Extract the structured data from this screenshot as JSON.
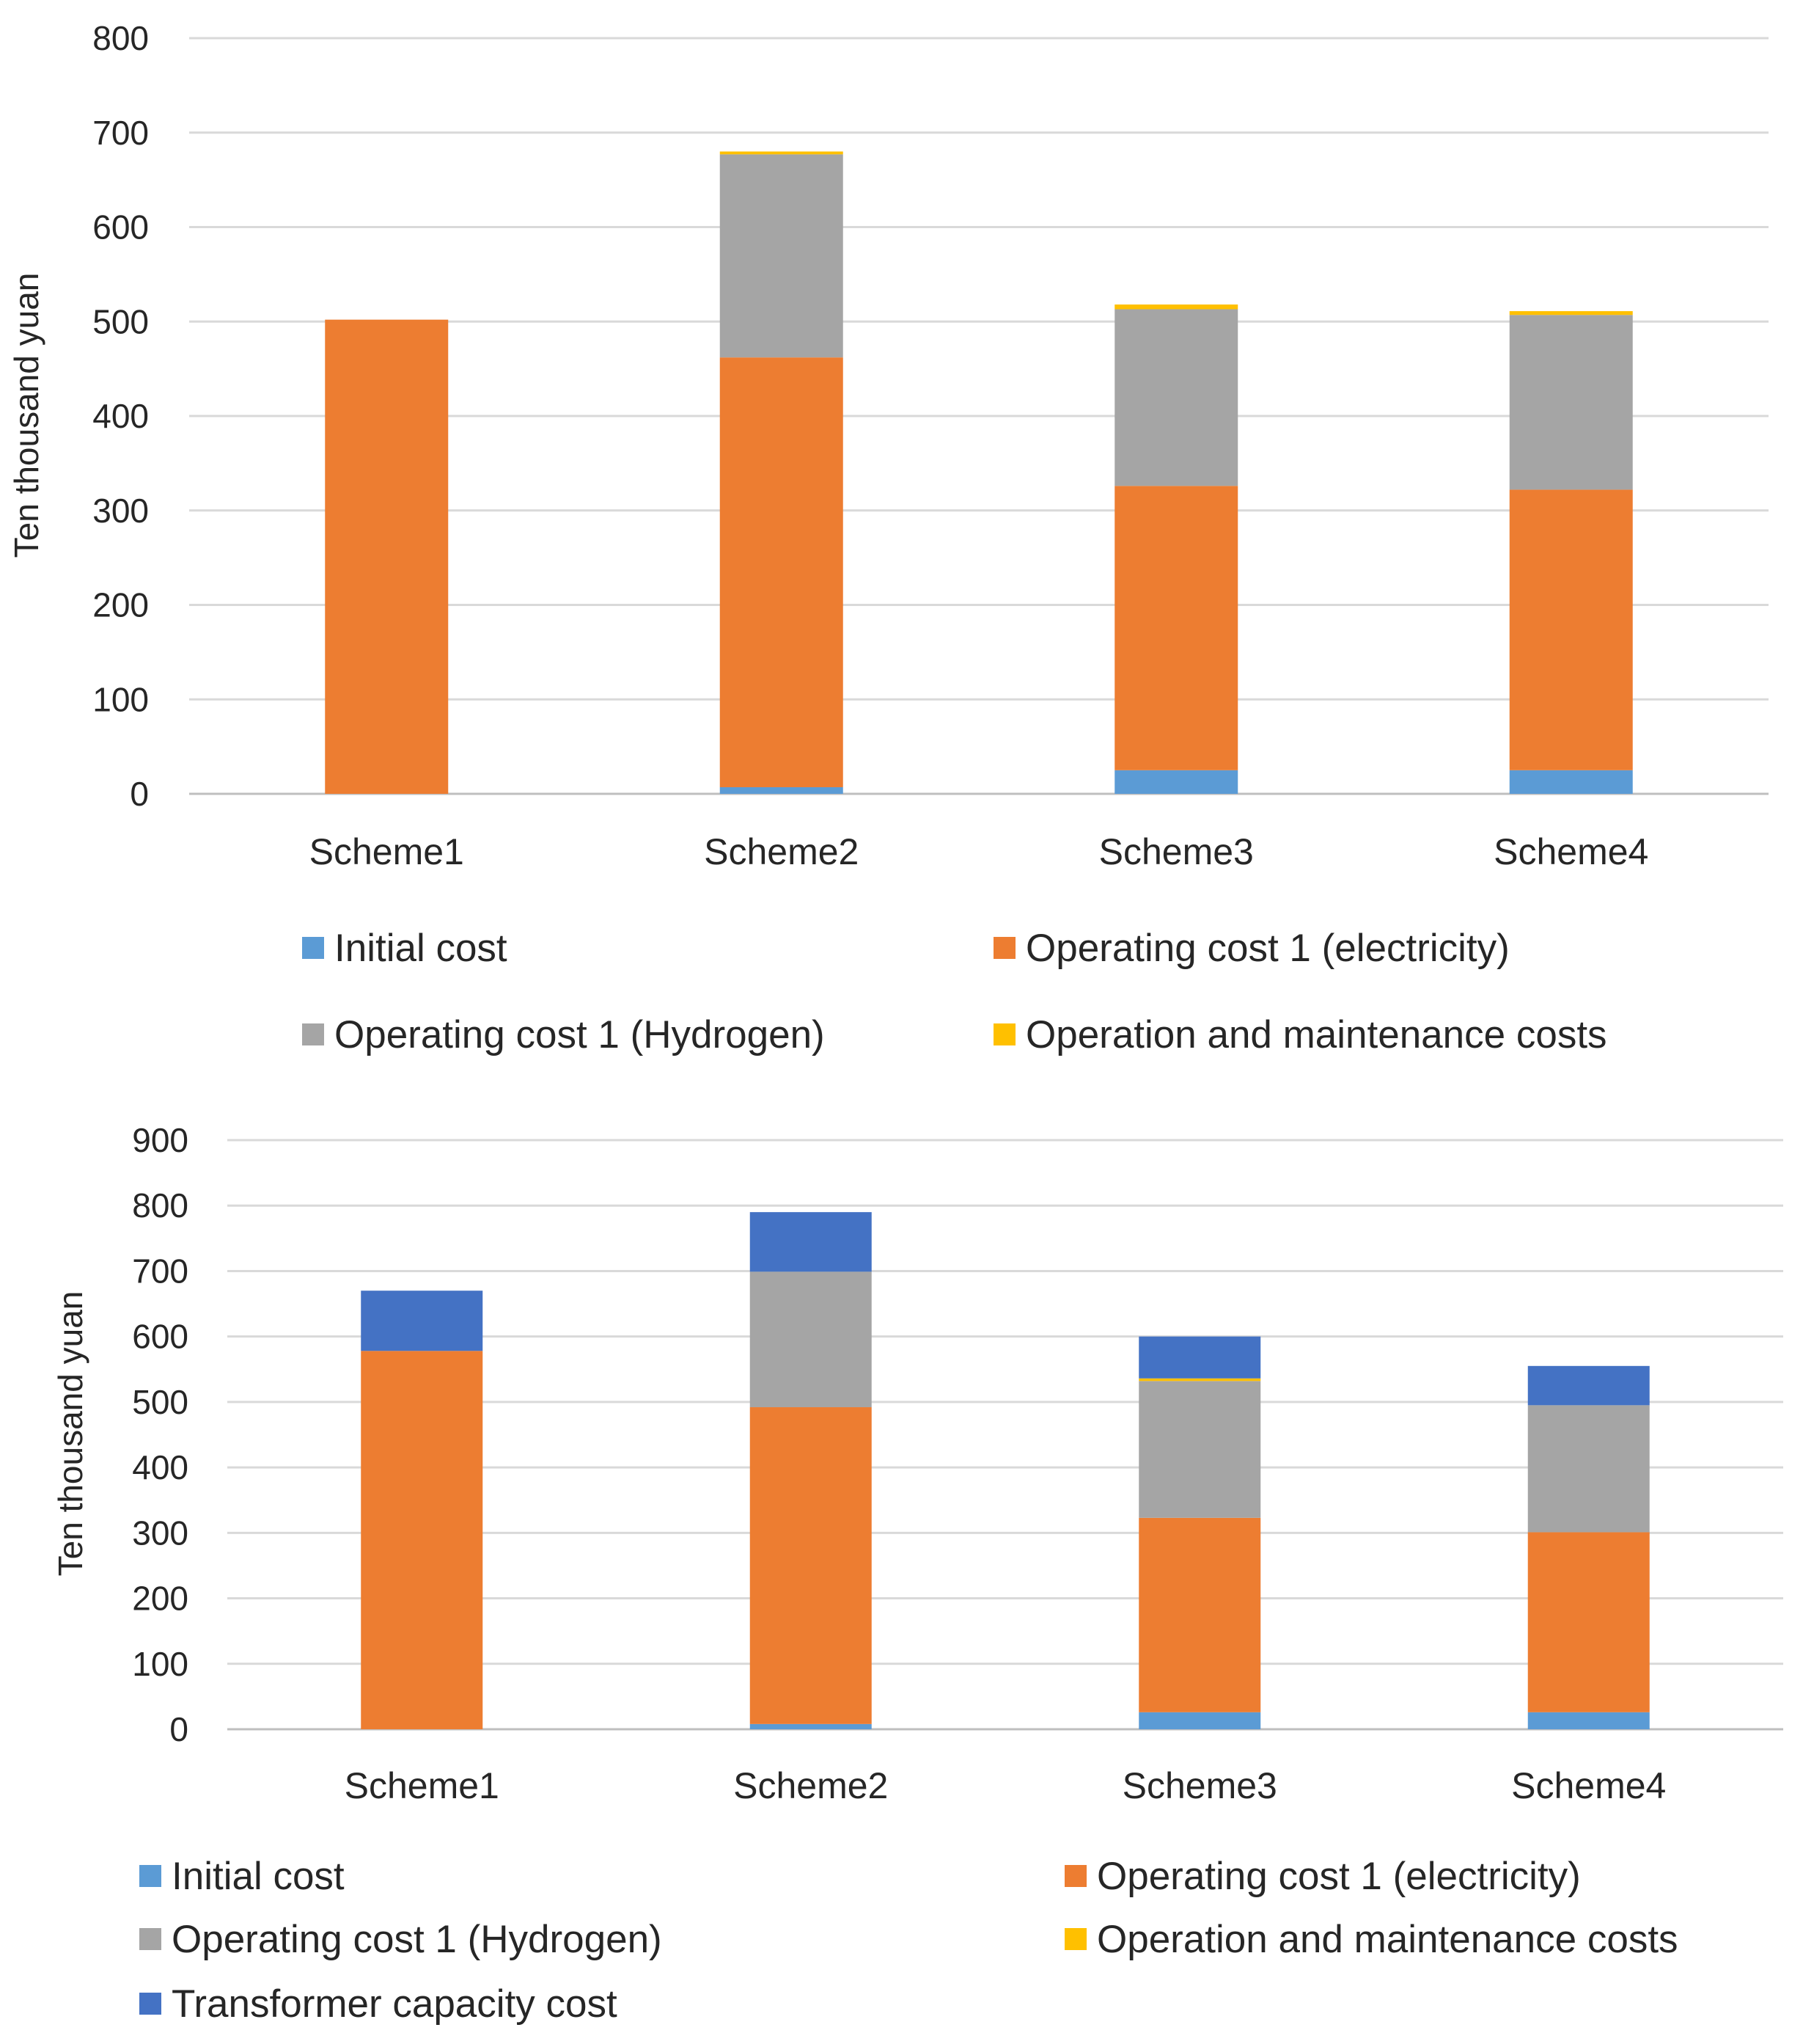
{
  "chart_data": [
    {
      "type": "bar",
      "stacked": true,
      "ylabel": "Ten thousand yuan",
      "ylim": [
        0,
        800
      ],
      "ytick_step": 100,
      "grid": true,
      "categories": [
        "Scheme1",
        "Scheme2",
        "Scheme3",
        "Scheme4"
      ],
      "series": [
        {
          "name": "Initial cost",
          "color": "#5b9bd5",
          "values": [
            0,
            7,
            25,
            25
          ]
        },
        {
          "name": "Operating cost 1 (electricity)",
          "color": "#ed7d31",
          "values": [
            502,
            455,
            301,
            297
          ]
        },
        {
          "name": "Operating cost 1 (Hydrogen)",
          "color": "#a5a5a5",
          "values": [
            0,
            215,
            187,
            185
          ]
        },
        {
          "name": "Operation and maintenance costs",
          "color": "#ffc000",
          "values": [
            0,
            3,
            5,
            4
          ]
        }
      ],
      "legend_position": "bottom"
    },
    {
      "type": "bar",
      "stacked": true,
      "ylabel": "Ten thousand yuan",
      "ylim": [
        0,
        900
      ],
      "ytick_step": 100,
      "grid": true,
      "categories": [
        "Scheme1",
        "Scheme2",
        "Scheme3",
        "Scheme4"
      ],
      "series": [
        {
          "name": "Initial cost",
          "color": "#5b9bd5",
          "values": [
            0,
            8,
            26,
            26
          ]
        },
        {
          "name": "Operating cost 1 (electricity)",
          "color": "#ed7d31",
          "values": [
            578,
            484,
            297,
            275
          ]
        },
        {
          "name": "Operating cost 1 (Hydrogen)",
          "color": "#a5a5a5",
          "values": [
            0,
            207,
            209,
            194
          ]
        },
        {
          "name": "Operation and maintenance costs",
          "color": "#ffc000",
          "values": [
            0,
            0,
            4,
            0
          ]
        },
        {
          "name": "Transformer capacity cost",
          "color": "#4472c4",
          "values": [
            92,
            91,
            64,
            60
          ]
        }
      ],
      "legend_position": "bottom"
    }
  ]
}
